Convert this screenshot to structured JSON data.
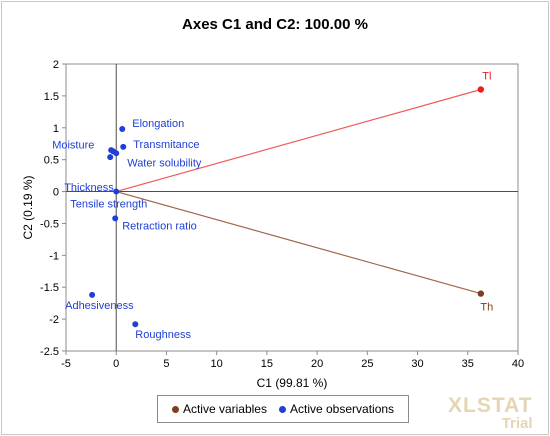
{
  "chart_data": {
    "type": "scatter",
    "title": "Axes C1 and C2: 100.00 %",
    "xlabel": "C1 (99.81 %)",
    "ylabel": "C2 (0.19 %)",
    "xlim": [
      -5,
      40
    ],
    "ylim": [
      -2.5,
      2
    ],
    "x_ticks": [
      -5,
      0,
      5,
      10,
      15,
      20,
      25,
      30,
      35,
      40
    ],
    "y_ticks": [
      -2.5,
      -2,
      -1.5,
      -1,
      -0.5,
      0,
      0.5,
      1,
      1.5,
      2
    ],
    "y_tick_labels": [
      "-2.5",
      "-2",
      "-1.5",
      "-1",
      "-0.5",
      "0",
      "0.5",
      "1",
      "1.5",
      "2"
    ],
    "grid": false,
    "legend_position": "bottom",
    "series": [
      {
        "name": "Active variables",
        "color": "#7b3f1e",
        "points": [
          {
            "label": "Tl",
            "x": 36.3,
            "y": 1.6,
            "color": "#e8201f",
            "line_color": "#ef5c5c"
          },
          {
            "label": "Th",
            "x": 36.3,
            "y": -1.6,
            "color": "#7b3f1e",
            "line_color": "#a0674c"
          }
        ]
      },
      {
        "name": "Active observations",
        "color": "#1f3fd6",
        "points": [
          {
            "label": "Elongation",
            "x": 0.6,
            "y": 0.98
          },
          {
            "label": "Moisture",
            "x": -0.3,
            "y": 0.63
          },
          {
            "label": "Transmitance",
            "x": 0.7,
            "y": 0.7
          },
          {
            "label": "Water solubility",
            "x": 0.0,
            "y": 0.6
          },
          {
            "label": "",
            "x": -0.5,
            "y": 0.65
          },
          {
            "label": "Thickness",
            "x": -0.6,
            "y": 0.54
          },
          {
            "label": "Tensile strength",
            "x": 0.0,
            "y": 0.0
          },
          {
            "label": "Retraction ratio",
            "x": -0.1,
            "y": -0.42
          },
          {
            "label": "Adhesiveness",
            "x": -2.4,
            "y": -1.62
          },
          {
            "label": "Roughness",
            "x": 1.9,
            "y": -2.08
          }
        ]
      }
    ]
  },
  "watermark": {
    "line1": "XLSTAT",
    "line2": "Trial"
  }
}
